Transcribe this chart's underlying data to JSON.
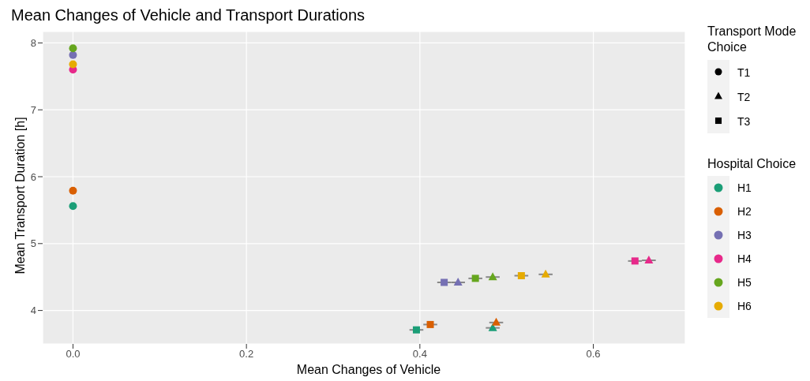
{
  "chart_data": {
    "type": "scatter",
    "title": "Mean Changes of Vehicle and Transport Durations",
    "xlabel": "Mean Changes of Vehicle",
    "ylabel": "Mean Transport Duration [h]",
    "xlim": [
      -0.035,
      0.706
    ],
    "xticks": [
      {
        "value": 0,
        "label": "0.0"
      },
      {
        "value": 0.2,
        "label": "0.2"
      },
      {
        "value": 0.4,
        "label": "0.4"
      },
      {
        "value": 0.6,
        "label": "0.6"
      }
    ],
    "ylim": [
      3.5,
      8.17
    ],
    "yticks": [
      4,
      5,
      6,
      7,
      8
    ],
    "grid": true,
    "legend": "right",
    "annotations": [
      "Transport Mode Choice"
    ],
    "legend_title": "Hospital Choice",
    "series": [
      {
        "name": "T1",
        "color": "#000000",
        "marker": "circle",
        "x": [
          0,
          0,
          0,
          0,
          0,
          0
        ],
        "values": [
          5.56,
          5.79,
          7.82,
          7.6,
          7.92,
          7.68
        ],
        "colors": [
          "#1b9e77",
          "#d95f02",
          "#7570b3",
          "#e7298a",
          "#66a61e",
          "#e6ab02"
        ]
      },
      {
        "name": "T2",
        "color": "#000000",
        "marker": "triangle",
        "x": [
          0.484,
          0.488,
          0.444,
          0.664,
          0.484,
          0.545
        ],
        "values": [
          3.74,
          3.82,
          4.42,
          4.75,
          4.5,
          4.54
        ],
        "colors": [
          "#1b9e77",
          "#d95f02",
          "#7570b3",
          "#e7298a",
          "#66a61e",
          "#e6ab02"
        ],
        "xerrors": [
          0.008,
          0.008,
          0.008,
          0.008,
          0.008,
          0.008
        ]
      },
      {
        "name": "T3",
        "color": "#000000",
        "marker": "square",
        "x": [
          0.396,
          0.412,
          0.428,
          0.648,
          0.464,
          0.517
        ],
        "values": [
          3.71,
          3.79,
          4.42,
          4.74,
          4.48,
          4.52
        ],
        "colors": [
          "#1b9e77",
          "#d95f02",
          "#7570b3",
          "#e7298a",
          "#66a61e",
          "#e6ab02"
        ],
        "xerrors": [
          0.008,
          0.008,
          0.008,
          0.008,
          0.008,
          0.008
        ]
      },
      {
        "name": "H1",
        "color": "#1b9e77"
      },
      {
        "name": "H2",
        "color": "#d95f02"
      },
      {
        "name": "H3",
        "color": "#7570b3"
      },
      {
        "name": "H4",
        "color": "#e7298a"
      },
      {
        "name": "H5",
        "color": "#66a61e"
      },
      {
        "name": "H6",
        "color": "#e6ab02"
      }
    ]
  }
}
